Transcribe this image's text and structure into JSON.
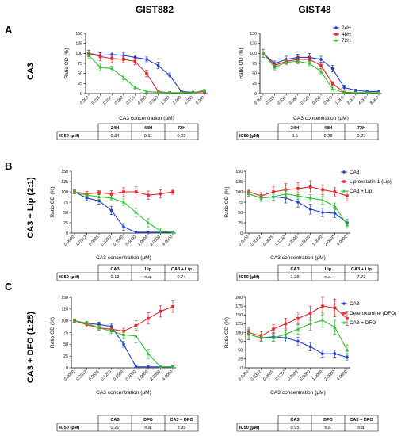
{
  "figure": {
    "columns": [
      "GIST882",
      "GIST48"
    ],
    "panels": [
      {
        "letter": "A",
        "label": "CA3"
      },
      {
        "letter": "B",
        "label": "CA3 + Lip (2:1)"
      },
      {
        "letter": "C",
        "label": "CA3 + DFO (1:25)"
      }
    ]
  },
  "colors": {
    "blue": "#1f3fd6",
    "red": "#e8262b",
    "green": "#2ec42e"
  },
  "chart_data": [
    {
      "id": "A1",
      "type": "line",
      "ylabel": "Ratio OD (%)",
      "xlabel": "CA3 concentration (μM)",
      "ylim": [
        0,
        150
      ],
      "yticks": [
        0,
        25,
        50,
        75,
        100,
        125,
        150
      ],
      "categories": [
        "0.000",
        "0.015",
        "0.031",
        "0.062",
        "0.125",
        "0.250",
        "0.500",
        "1.000",
        "2.000",
        "4.000",
        "8.000"
      ],
      "series": [
        {
          "name": "24H",
          "color": "blue",
          "values": [
            100,
            95,
            97,
            95,
            90,
            85,
            70,
            45,
            5,
            3,
            5
          ],
          "err": [
            8,
            6,
            6,
            6,
            5,
            6,
            8,
            6,
            2,
            2,
            3
          ]
        },
        {
          "name": "48H",
          "color": "red",
          "values": [
            100,
            92,
            87,
            85,
            80,
            50,
            5,
            2,
            2,
            2,
            5
          ],
          "err": [
            8,
            10,
            10,
            8,
            8,
            8,
            3,
            2,
            2,
            2,
            3
          ]
        },
        {
          "name": "72H",
          "color": "green",
          "values": [
            95,
            65,
            62,
            40,
            15,
            5,
            3,
            2,
            2,
            2,
            8
          ],
          "err": [
            8,
            8,
            6,
            6,
            4,
            3,
            2,
            2,
            2,
            2,
            3
          ]
        }
      ],
      "legend": "top-right",
      "table": {
        "header": [
          "",
          "24H",
          "48H",
          "72H"
        ],
        "rows": [
          [
            "IC50 (μM)",
            "0.34",
            "0.11",
            "0.03"
          ]
        ]
      }
    },
    {
      "id": "A2",
      "type": "line",
      "ylabel": "Ratio OD (%)",
      "xlabel": "CA3 concentration (μM)",
      "ylim": [
        0,
        150
      ],
      "yticks": [
        0,
        25,
        50,
        75,
        100,
        125,
        150
      ],
      "categories": [
        "0.000",
        "0.015",
        "0.031",
        "0.062",
        "0.125",
        "0.250",
        "0.500",
        "1.000",
        "2.000",
        "4.000",
        "8.000"
      ],
      "series": [
        {
          "name": "24H",
          "color": "blue",
          "values": [
            100,
            75,
            85,
            90,
            90,
            85,
            62,
            15,
            8,
            5,
            5
          ],
          "err": [
            10,
            6,
            8,
            8,
            10,
            8,
            8,
            6,
            3,
            3,
            3
          ]
        },
        {
          "name": "48H",
          "color": "red",
          "values": [
            100,
            70,
            80,
            85,
            85,
            70,
            25,
            3,
            2,
            2,
            2
          ],
          "err": [
            10,
            6,
            6,
            8,
            8,
            8,
            5,
            2,
            2,
            2,
            2
          ]
        },
        {
          "name": "72H",
          "color": "green",
          "values": [
            100,
            65,
            78,
            80,
            75,
            55,
            12,
            2,
            2,
            2,
            2
          ],
          "err": [
            10,
            6,
            6,
            6,
            6,
            6,
            4,
            2,
            2,
            2,
            2
          ]
        }
      ],
      "legend": "top-right",
      "table": {
        "header": [
          "",
          "24H",
          "48H",
          "72H"
        ],
        "rows": [
          [
            "IC50 (μM)",
            "0.5",
            "0.28",
            "0.27"
          ]
        ]
      }
    },
    {
      "id": "B1",
      "type": "line",
      "ylabel": "Ratio OD (%)",
      "xlabel": "CA3 concentration (μM)",
      "ylim": [
        0,
        150
      ],
      "yticks": [
        0,
        25,
        50,
        75,
        100,
        125,
        150
      ],
      "categories": [
        "0.0000",
        "0.0312",
        "0.0625",
        "0.1250",
        "0.2500",
        "0.5000",
        "1.0000",
        "2.0000",
        "4.0000"
      ],
      "series": [
        {
          "name": "CA3",
          "color": "blue",
          "values": [
            100,
            85,
            78,
            55,
            15,
            2,
            2,
            2,
            2
          ],
          "err": [
            5,
            6,
            8,
            10,
            8,
            2,
            2,
            2,
            2
          ]
        },
        {
          "name": "Liproxstatin-1 (Lip)",
          "color": "red",
          "values": [
            100,
            95,
            98,
            95,
            100,
            100,
            92,
            95,
            100
          ],
          "err": [
            5,
            6,
            5,
            8,
            10,
            12,
            10,
            10,
            6
          ]
        },
        {
          "name": "CA3 + Lip",
          "color": "green",
          "values": [
            100,
            92,
            88,
            85,
            75,
            50,
            25,
            5,
            2
          ],
          "err": [
            5,
            5,
            6,
            6,
            8,
            10,
            10,
            5,
            2
          ]
        }
      ],
      "legend": "none",
      "table": {
        "header": [
          "",
          "CA3",
          "Lip",
          "CA3 + Lip"
        ],
        "rows": [
          [
            "IC50 (μM)",
            "0.13",
            "n.a.",
            "0.74"
          ]
        ]
      }
    },
    {
      "id": "B2",
      "type": "line",
      "ylabel": "Ratio OD (%)",
      "xlabel": "CA3 concentration (μM)",
      "ylim": [
        0,
        150
      ],
      "yticks": [
        0,
        25,
        50,
        75,
        100,
        125,
        150
      ],
      "categories": [
        "0.0000",
        "0.0312",
        "0.0625",
        "0.1250",
        "0.2500",
        "0.5000",
        "1.0000",
        "2.0000",
        "4.0000"
      ],
      "series": [
        {
          "name": "CA3",
          "color": "blue",
          "values": [
            95,
            85,
            88,
            85,
            75,
            58,
            50,
            48,
            25
          ],
          "err": [
            6,
            8,
            10,
            12,
            12,
            12,
            10,
            10,
            8
          ]
        },
        {
          "name": "Liproxstatin-1 (Lip)",
          "color": "red",
          "values": [
            100,
            90,
            100,
            105,
            108,
            112,
            105,
            100,
            90
          ],
          "err": [
            6,
            8,
            12,
            15,
            15,
            15,
            12,
            10,
            12
          ]
        },
        {
          "name": "CA3 + Lip",
          "color": "green",
          "values": [
            95,
            85,
            88,
            95,
            90,
            85,
            80,
            65,
            20
          ],
          "err": [
            6,
            6,
            8,
            10,
            8,
            8,
            10,
            8,
            8
          ]
        }
      ],
      "legend": "top-right",
      "table": {
        "header": [
          "",
          "CA3",
          "Lip",
          "CA3 + Lip"
        ],
        "rows": [
          [
            "IC50 (μM)",
            "1.28",
            "n.a.",
            "7.72"
          ]
        ]
      }
    },
    {
      "id": "C1",
      "type": "line",
      "ylabel": "Ratio OD (%)",
      "xlabel": "CA3 concentration (μM)",
      "ylim": [
        0,
        150
      ],
      "yticks": [
        0,
        25,
        50,
        75,
        100,
        125,
        150
      ],
      "categories": [
        "0.0000",
        "0.0312",
        "0.0625",
        "0.1250",
        "0.2500",
        "0.5000",
        "1.0000",
        "2.0000",
        "4.0000"
      ],
      "series": [
        {
          "name": "CA3",
          "color": "blue",
          "values": [
            100,
            95,
            92,
            88,
            50,
            2,
            2,
            2,
            2
          ],
          "err": [
            4,
            4,
            5,
            5,
            6,
            2,
            2,
            2,
            2
          ]
        },
        {
          "name": "Deferoxamine (DFO)",
          "color": "red",
          "values": [
            100,
            92,
            85,
            82,
            78,
            90,
            105,
            120,
            130
          ],
          "err": [
            4,
            5,
            5,
            5,
            6,
            10,
            12,
            12,
            12
          ]
        },
        {
          "name": "CA3 + DFO",
          "color": "green",
          "values": [
            100,
            95,
            85,
            78,
            70,
            68,
            30,
            2,
            2
          ],
          "err": [
            4,
            4,
            5,
            5,
            8,
            15,
            10,
            2,
            2
          ]
        }
      ],
      "legend": "none",
      "table": {
        "header": [
          "",
          "CA3",
          "DFO",
          "CA3 + DFO"
        ],
        "rows": [
          [
            "IC50 (μM)",
            "0.21",
            "n.a.",
            "3.95"
          ]
        ]
      }
    },
    {
      "id": "C2",
      "type": "line",
      "ylabel": "Ratio OD (%)",
      "xlabel": "CA3 concentration (μM)",
      "ylim": [
        0,
        200
      ],
      "yticks": [
        0,
        25,
        50,
        75,
        100,
        125,
        150,
        175,
        200
      ],
      "categories": [
        "0.0000",
        "0.0312",
        "0.0625",
        "0.1250",
        "0.2500",
        "0.5000",
        "1.0000",
        "2.0000",
        "4.0000"
      ],
      "series": [
        {
          "name": "CA3",
          "color": "blue",
          "values": [
            95,
            85,
            88,
            85,
            75,
            60,
            40,
            40,
            30
          ],
          "err": [
            15,
            10,
            12,
            12,
            12,
            12,
            10,
            10,
            10
          ]
        },
        {
          "name": "Deferoxamine (DFO)",
          "color": "red",
          "values": [
            100,
            90,
            110,
            125,
            140,
            155,
            175,
            170,
            140
          ],
          "err": [
            15,
            12,
            12,
            15,
            18,
            20,
            25,
            25,
            20
          ]
        },
        {
          "name": "CA3 + DFO",
          "color": "green",
          "values": [
            95,
            85,
            85,
            95,
            110,
            125,
            135,
            115,
            50
          ],
          "err": [
            12,
            10,
            10,
            12,
            15,
            18,
            20,
            20,
            15
          ]
        }
      ],
      "legend": "top-right",
      "table": {
        "header": [
          "",
          "CA3",
          "DFO",
          "CA3 + DFO"
        ],
        "rows": [
          [
            "IC50 (μM)",
            "0.95",
            "n.a.",
            "n.a."
          ]
        ]
      }
    }
  ]
}
